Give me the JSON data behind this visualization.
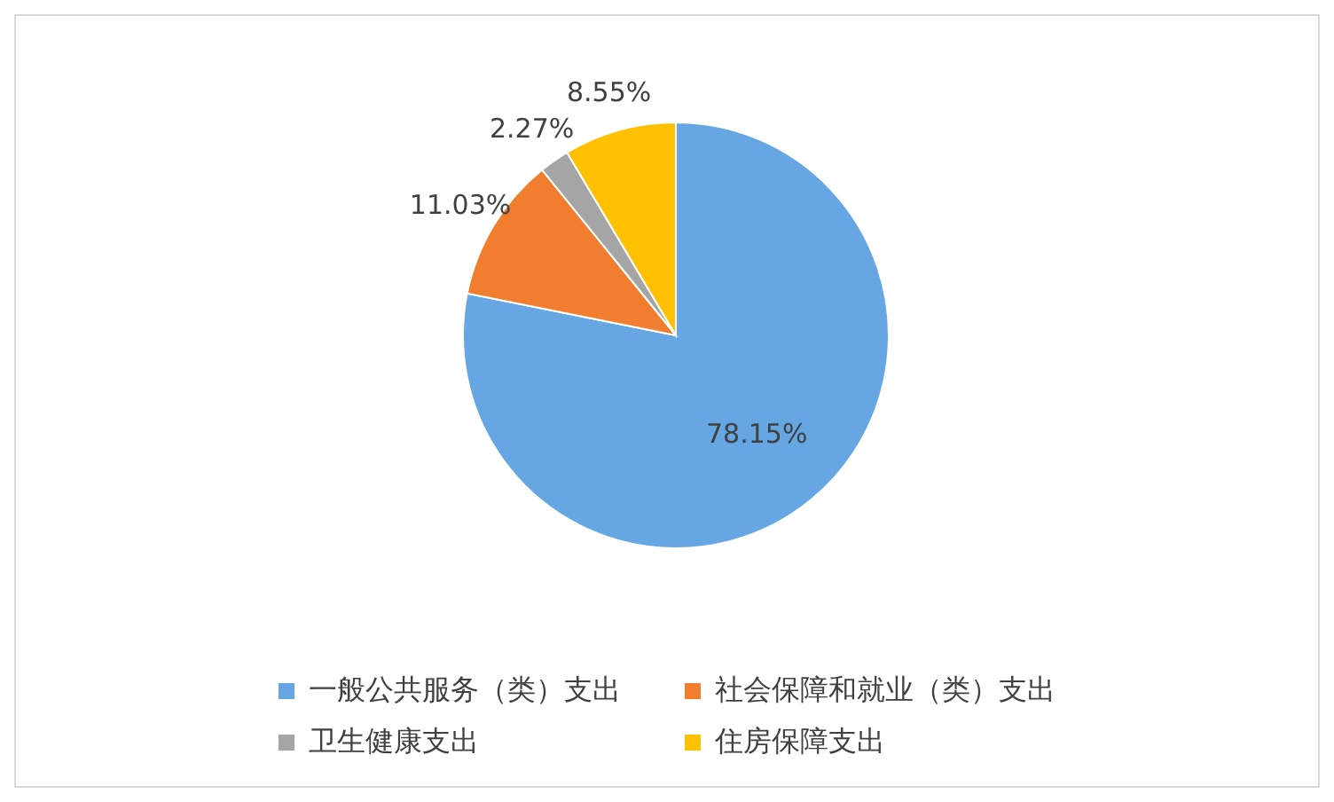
{
  "chart_data": {
    "type": "pie",
    "categories": [
      "一般公共服务（类）支出",
      "社会保障和就业（类）支出",
      "卫生健康支出",
      "住房保障支出"
    ],
    "values": [
      78.15,
      11.03,
      2.27,
      8.55
    ],
    "colors": [
      "#65a6e3",
      "#f07e2e",
      "#a5a5a5",
      "#ffc000"
    ],
    "value_labels": [
      "78.15%",
      "11.03%",
      "2.27%",
      "8.55%"
    ],
    "legend": "bottom"
  }
}
